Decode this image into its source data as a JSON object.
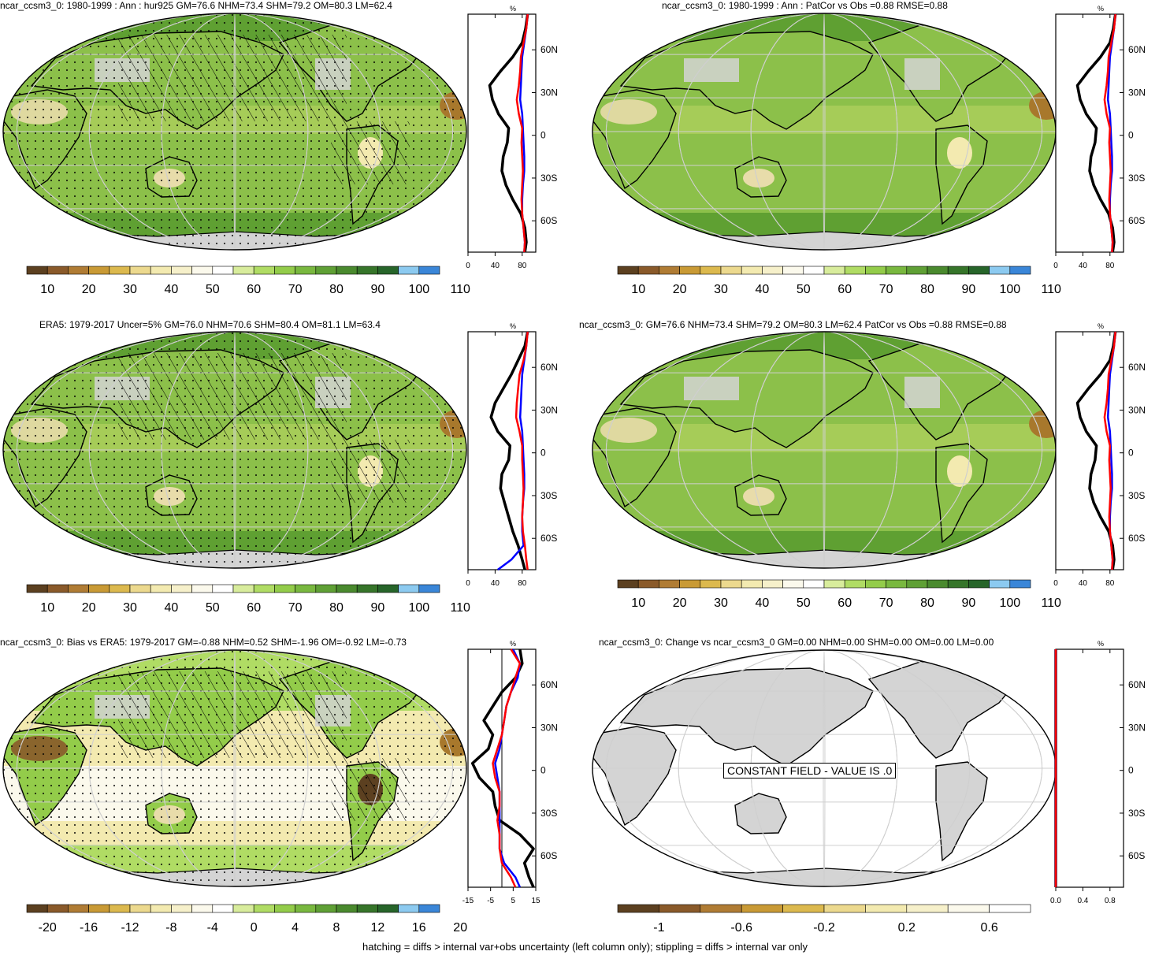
{
  "colors": {
    "land_mask": "#d4d4d4",
    "map_green": "#8cc04a",
    "map_green_dark": "#5fa032",
    "map_tan": "#e8dcaa",
    "map_brown": "#a8782c",
    "zonal_model": "#000000",
    "zonal_obs": "#0000ff",
    "zonal_land": "#ff0000",
    "abs_palette": [
      "#5c4020",
      "#8a5a2a",
      "#b07c34",
      "#c99a35",
      "#dcb94e",
      "#ecd98e",
      "#f3eab0",
      "#f6f0ca",
      "#fbf9ec",
      "#ffffff",
      "#d8ec9c",
      "#b0dc64",
      "#93cc4a",
      "#79b83f",
      "#5fa035",
      "#4a8a2e",
      "#36752a",
      "#27652a",
      "#8ccaf0",
      "#3a86d8"
    ],
    "diff_palette": [
      "#5c4020",
      "#8a5a2a",
      "#b07c34",
      "#c99a35",
      "#dcb94e",
      "#ecd98e",
      "#f3eab0",
      "#f6f0ca",
      "#fbf9ec",
      "#ffffff",
      "#d8ec9c",
      "#b0dc64",
      "#93cc4a",
      "#79b83f",
      "#5fa035",
      "#4a8a2e",
      "#36752a",
      "#27652a",
      "#8ccaf0",
      "#3a86d8"
    ],
    "chg_palette": [
      "#5c4020",
      "#8a5a2a",
      "#b07c34",
      "#c99a35",
      "#dcb94e",
      "#ecd98e",
      "#f3eab0",
      "#f6f0ca",
      "#fbf9ec",
      "#ffffff"
    ]
  },
  "panels": [
    {
      "title": "ncar_ccsm3_0: 1980-1999 : Ann : hur925 GM=76.6 NHM=73.4 SHM=79.2 OM=80.3 LM=62.4",
      "map": "abs",
      "hatch": true,
      "stipple": true,
      "message": "",
      "colorbar": {
        "labels": [
          "10",
          "20",
          "30",
          "40",
          "50",
          "60",
          "70",
          "80",
          "90",
          "100",
          "110"
        ]
      },
      "zonal": {
        "unit": "%",
        "xlim": [
          0,
          100
        ],
        "xticks": [
          "0",
          "40",
          "80"
        ],
        "xtick_values": [
          0,
          40,
          80
        ],
        "zero_line": false,
        "lat_labels": [
          "60N",
          "30N",
          "0",
          "30S",
          "60S"
        ],
        "lat_values": [
          60,
          30,
          0,
          -30,
          -60
        ]
      }
    },
    {
      "title": "ncar_ccsm3_0: 1980-1999 : Ann : PatCor vs Obs =0.88 RMSE=0.88",
      "map": "abs",
      "hatch": false,
      "stipple": false,
      "message": "",
      "colorbar": {
        "labels": [
          "10",
          "20",
          "30",
          "40",
          "50",
          "60",
          "70",
          "80",
          "90",
          "100",
          "110"
        ]
      },
      "zonal": {
        "unit": "%",
        "xlim": [
          0,
          100
        ],
        "xticks": [
          "0",
          "40",
          "80"
        ],
        "xtick_values": [
          0,
          40,
          80
        ],
        "zero_line": false,
        "lat_labels": [
          "60N",
          "30N",
          "0",
          "30S",
          "60S"
        ],
        "lat_values": [
          60,
          30,
          0,
          -30,
          -60
        ]
      }
    },
    {
      "title": "ERA5: 1979-2017 Uncer=5% GM=76.0 NHM=70.6 SHM=80.4 OM=81.1 LM=63.4",
      "map": "abs",
      "hatch": true,
      "stipple": true,
      "message": "",
      "colorbar": {
        "labels": [
          "10",
          "20",
          "30",
          "40",
          "50",
          "60",
          "70",
          "80",
          "90",
          "100",
          "110"
        ]
      },
      "zonal": {
        "unit": "%",
        "xlim": [
          0,
          100
        ],
        "xticks": [
          "0",
          "40",
          "80"
        ],
        "xtick_values": [
          0,
          40,
          80
        ],
        "zero_line": false,
        "lat_labels": [
          "60N",
          "30N",
          "0",
          "30S",
          "60S"
        ],
        "lat_values": [
          60,
          30,
          0,
          -30,
          -60
        ]
      }
    },
    {
      "title": "ncar_ccsm3_0: GM=76.6 NHM=73.4 SHM=79.2 OM=80.3 LM=62.4 PatCor vs Obs =0.88 RMSE=0.88",
      "map": "abs",
      "hatch": false,
      "stipple": false,
      "message": "",
      "colorbar": {
        "labels": [
          "10",
          "20",
          "30",
          "40",
          "50",
          "60",
          "70",
          "80",
          "90",
          "100",
          "110"
        ]
      },
      "zonal": {
        "unit": "%",
        "xlim": [
          0,
          100
        ],
        "xticks": [
          "0",
          "40",
          "80"
        ],
        "xtick_values": [
          0,
          40,
          80
        ],
        "zero_line": false,
        "lat_labels": [
          "60N",
          "30N",
          "0",
          "30S",
          "60S"
        ],
        "lat_values": [
          60,
          30,
          0,
          -30,
          -60
        ]
      }
    },
    {
      "title": "ncar_ccsm3_0: Bias vs ERA5: 1979-2017 GM=-0.88 NHM=0.52 SHM=-1.96 OM=-0.92 LM=-0.73",
      "map": "diff",
      "hatch": true,
      "stipple": true,
      "message": "",
      "colorbar": {
        "labels": [
          "-20",
          "-16",
          "-12",
          "-8",
          "-4",
          "0",
          "4",
          "8",
          "12",
          "16",
          "20"
        ]
      },
      "zonal": {
        "unit": "%",
        "xlim": [
          -15,
          15
        ],
        "xticks": [
          "-15",
          "-5",
          "5",
          "15"
        ],
        "xtick_values": [
          -15,
          -5,
          5,
          15
        ],
        "zero_line": true,
        "lat_labels": [
          "60N",
          "30N",
          "0",
          "30S",
          "60S"
        ],
        "lat_values": [
          60,
          30,
          0,
          -30,
          -60
        ]
      }
    },
    {
      "title": "ncar_ccsm3_0: Change vs ncar_ccsm3_0 GM=0.00 NHM=0.00 SHM=0.00 OM=0.00 LM=0.00",
      "map": "blank",
      "hatch": false,
      "stipple": false,
      "message": "CONSTANT FIELD - VALUE IS .0",
      "colorbar": {
        "labels": [
          "-1",
          "-0.6",
          "-0.2",
          "0.2",
          "0.6"
        ]
      },
      "zonal": {
        "unit": "%",
        "xlim": [
          0,
          1
        ],
        "xticks": [
          "0.0",
          "0.4",
          "0.8"
        ],
        "xtick_values": [
          0,
          0.4,
          0.8
        ],
        "zero_line": false,
        "lat_labels": [
          "60N",
          "30N",
          "0",
          "30S",
          "60S"
        ],
        "lat_values": [
          60,
          30,
          0,
          -30,
          -60
        ]
      }
    }
  ],
  "footer": "hatching = diffs > internal var+obs uncertainty (left column only); stippling = diffs > internal var only",
  "chart_data": [
    {
      "type": "line",
      "title": "ncar_ccsm3_0: 1980-1999 : Ann : hur925 GM=76.6 NHM=73.4 SHM=79.2 OM=80.3 LM=62.4",
      "xlabel": "%",
      "ylabel": "",
      "xlim": [
        0,
        100
      ],
      "ylim": [
        -90,
        90
      ],
      "series": [
        {
          "lat": [
            85,
            75,
            65,
            55,
            45,
            35,
            25,
            15,
            5,
            -5,
            -15,
            -25,
            -35,
            -45,
            -55,
            -65,
            -75,
            -82
          ],
          "values": [
            88,
            86,
            82,
            78,
            77,
            75,
            72,
            75,
            80,
            79,
            80,
            81,
            80,
            79,
            80,
            82,
            84,
            83
          ]
        },
        {
          "lat": [
            85,
            75,
            65,
            55,
            45,
            35,
            25,
            15,
            5,
            -5,
            -15,
            -25,
            -35,
            -45,
            -55,
            -65,
            -75,
            -82
          ],
          "values": [
            88,
            86,
            83,
            80,
            79,
            78,
            77,
            80,
            81,
            82,
            83,
            83,
            81,
            80,
            80,
            82,
            84,
            83
          ]
        },
        {
          "lat": [
            85,
            75,
            65,
            55,
            45,
            35,
            25,
            15,
            5,
            -5,
            -15,
            -25,
            -35,
            -45,
            -55,
            -65,
            -75,
            -82
          ],
          "values": [
            88,
            85,
            80,
            66,
            48,
            32,
            36,
            45,
            60,
            58,
            52,
            50,
            56,
            66,
            78,
            84,
            86,
            84
          ]
        }
      ]
    },
    {
      "type": "line",
      "title": "ncar_ccsm3_0: 1980-1999 : Ann : PatCor vs Obs =0.88 RMSE=0.88",
      "xlabel": "%",
      "ylabel": "",
      "xlim": [
        0,
        100
      ],
      "ylim": [
        -90,
        90
      ],
      "series": [
        {
          "lat": [
            85,
            75,
            65,
            55,
            45,
            35,
            25,
            15,
            5,
            -5,
            -15,
            -25,
            -35,
            -45,
            -55,
            -65,
            -75,
            -82
          ],
          "values": [
            88,
            86,
            82,
            78,
            77,
            75,
            72,
            75,
            80,
            79,
            80,
            81,
            80,
            79,
            80,
            82,
            84,
            83
          ]
        },
        {
          "lat": [
            85,
            75,
            65,
            55,
            45,
            35,
            25,
            15,
            5,
            -5,
            -15,
            -25,
            -35,
            -45,
            -55,
            -65,
            -75,
            -82
          ],
          "values": [
            88,
            86,
            83,
            80,
            79,
            78,
            77,
            80,
            81,
            82,
            83,
            83,
            81,
            80,
            80,
            82,
            84,
            83
          ]
        },
        {
          "lat": [
            85,
            75,
            65,
            55,
            45,
            35,
            25,
            15,
            5,
            -5,
            -15,
            -25,
            -35,
            -45,
            -55,
            -65,
            -75,
            -82
          ],
          "values": [
            88,
            85,
            80,
            66,
            48,
            32,
            36,
            45,
            60,
            58,
            52,
            50,
            56,
            66,
            78,
            84,
            86,
            84
          ]
        }
      ]
    },
    {
      "type": "line",
      "title": "ERA5: 1979-2017 Uncer=5% GM=76.0 NHM=70.6 SHM=80.4 OM=81.1 LM=63.4",
      "xlabel": "%",
      "ylabel": "",
      "xlim": [
        0,
        100
      ],
      "ylim": [
        -90,
        90
      ],
      "series": [
        {
          "lat": [
            85,
            75,
            65,
            55,
            45,
            35,
            25,
            15,
            5,
            -5,
            -15,
            -25,
            -35,
            -45,
            -55,
            -65,
            -75,
            -82
          ],
          "values": [
            88,
            86,
            82,
            76,
            74,
            72,
            71,
            76,
            80,
            80,
            81,
            82,
            81,
            80,
            81,
            84,
            86,
            88
          ]
        },
        {
          "lat": [
            85,
            75,
            65,
            55,
            45,
            35,
            25,
            15,
            5,
            -5,
            -15,
            -25,
            -35,
            -45,
            -55,
            -65,
            -75,
            -82
          ],
          "values": [
            88,
            86,
            83,
            80,
            79,
            78,
            77,
            80,
            81,
            82,
            83,
            83,
            81,
            80,
            80,
            82,
            64,
            44
          ]
        },
        {
          "lat": [
            85,
            75,
            65,
            55,
            45,
            35,
            25,
            15,
            5,
            -5,
            -15,
            -25,
            -35,
            -45,
            -55,
            -65,
            -75,
            -82
          ],
          "values": [
            88,
            84,
            74,
            64,
            52,
            40,
            34,
            44,
            62,
            60,
            50,
            48,
            54,
            60,
            66,
            74,
            80,
            84
          ]
        }
      ]
    },
    {
      "type": "line",
      "title": "ncar_ccsm3_0: GM=76.6 NHM=73.4 SHM=79.2 OM=80.3 LM=62.4 PatCor vs Obs =0.88 RMSE=0.88",
      "xlabel": "%",
      "ylabel": "",
      "xlim": [
        0,
        100
      ],
      "ylim": [
        -90,
        90
      ],
      "series": [
        {
          "lat": [
            85,
            75,
            65,
            55,
            45,
            35,
            25,
            15,
            5,
            -5,
            -15,
            -25,
            -35,
            -45,
            -55,
            -65,
            -75,
            -82
          ],
          "values": [
            88,
            86,
            82,
            78,
            77,
            75,
            72,
            75,
            80,
            79,
            80,
            81,
            80,
            79,
            80,
            82,
            84,
            83
          ]
        },
        {
          "lat": [
            85,
            75,
            65,
            55,
            45,
            35,
            25,
            15,
            5,
            -5,
            -15,
            -25,
            -35,
            -45,
            -55,
            -65,
            -75,
            -82
          ],
          "values": [
            88,
            86,
            83,
            80,
            79,
            78,
            77,
            80,
            81,
            82,
            83,
            83,
            81,
            80,
            80,
            82,
            84,
            83
          ]
        },
        {
          "lat": [
            85,
            75,
            65,
            55,
            45,
            35,
            25,
            15,
            5,
            -5,
            -15,
            -25,
            -35,
            -45,
            -55,
            -65,
            -75,
            -82
          ],
          "values": [
            88,
            85,
            80,
            66,
            48,
            32,
            36,
            45,
            60,
            58,
            52,
            50,
            56,
            66,
            78,
            84,
            86,
            84
          ]
        }
      ]
    },
    {
      "type": "line",
      "title": "ncar_ccsm3_0: Bias vs ERA5: 1979-2017 GM=-0.88 NHM=0.52 SHM=-1.96 OM=-0.92 LM=-0.73",
      "xlabel": "%",
      "ylabel": "",
      "xlim": [
        -15,
        15
      ],
      "ylim": [
        -90,
        90
      ],
      "series": [
        {
          "lat": [
            85,
            75,
            65,
            55,
            45,
            35,
            25,
            15,
            5,
            -5,
            -15,
            -25,
            -35,
            -45,
            -55,
            -65,
            -75,
            -82
          ],
          "values": [
            4,
            8,
            6,
            4,
            2,
            1,
            0,
            -2,
            -4,
            -3,
            -1,
            -1,
            -2,
            -1,
            -1,
            0,
            4,
            6
          ]
        },
        {
          "lat": [
            85,
            75,
            65,
            55,
            45,
            35,
            25,
            15,
            5,
            -5,
            -15,
            -25,
            -35,
            -45,
            -55,
            -65,
            -75,
            -82
          ],
          "values": [
            5,
            8,
            7,
            4,
            2,
            1,
            0,
            -1,
            -3,
            -2,
            -1,
            -1,
            -1,
            -1,
            -1,
            1,
            6,
            8
          ]
        },
        {
          "lat": [
            85,
            75,
            65,
            55,
            45,
            35,
            25,
            15,
            5,
            -5,
            -15,
            -25,
            -35,
            -45,
            -55,
            -65,
            -75,
            -82
          ],
          "values": [
            8,
            9,
            6,
            0,
            -4,
            -8,
            -4,
            -6,
            -13,
            -10,
            -4,
            -3,
            -1,
            8,
            14,
            10,
            12,
            14
          ]
        }
      ]
    },
    {
      "type": "line",
      "title": "ncar_ccsm3_0: Change vs ncar_ccsm3_0 GM=0.00 NHM=0.00 SHM=0.00 OM=0.00 LM=0.00",
      "xlabel": "%",
      "ylabel": "",
      "xlim": [
        0,
        1
      ],
      "ylim": [
        -90,
        90
      ],
      "series": [
        {
          "lat": [
            85,
            -82
          ],
          "values": [
            0,
            0
          ]
        },
        {
          "lat": [
            85,
            -82
          ],
          "values": [
            0,
            0
          ]
        },
        {
          "lat": [
            85,
            -82
          ],
          "values": [
            0,
            0
          ]
        }
      ]
    }
  ]
}
